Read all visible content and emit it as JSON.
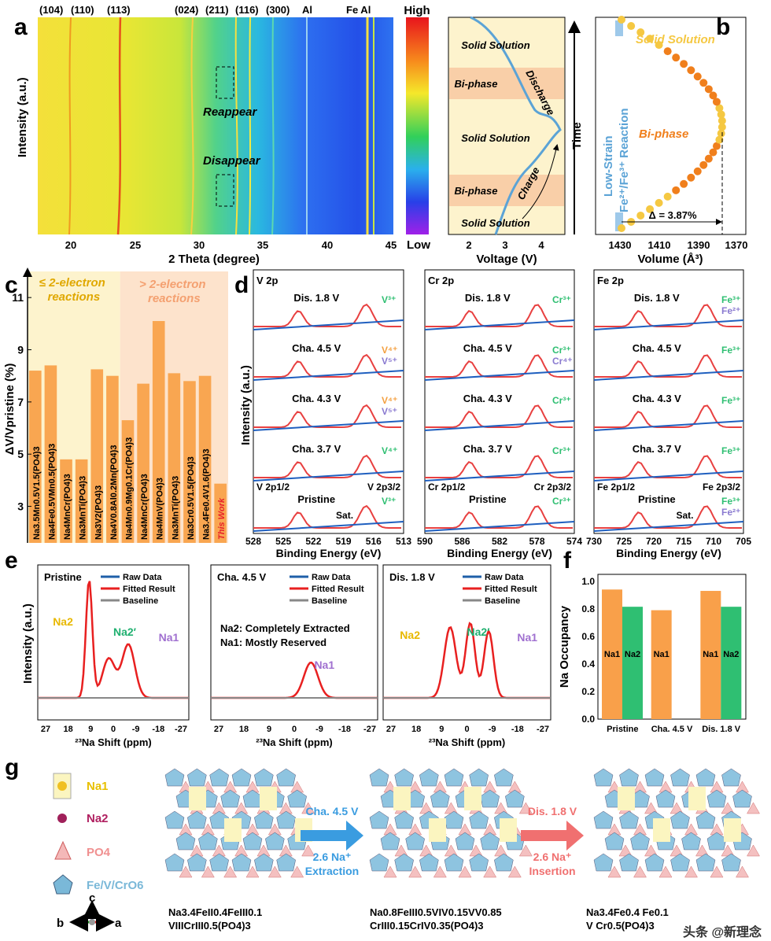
{
  "panels": {
    "a": "a",
    "b": "b",
    "c": "c",
    "d": "d",
    "e": "e",
    "f": "f",
    "g": "g"
  },
  "panel_a": {
    "ylabel": "Intensity (a.u.)",
    "xlabel": "2 Theta (degree)",
    "peaks": [
      "(104)",
      "(110)",
      "(113)",
      "(024)",
      "(211)",
      "(116)",
      "(300)",
      "Al",
      "Fe Al"
    ],
    "xticks": [
      "20",
      "25",
      "30",
      "35",
      "40",
      "45"
    ],
    "annotations": [
      "Reappear",
      "Disappear"
    ],
    "colorbar": {
      "high": "High",
      "low": "Low"
    },
    "voltage": {
      "xlabel": "Voltage (V)",
      "xticks": [
        "2",
        "3",
        "4"
      ],
      "regions": [
        "Solid Solution",
        "Bi-phase",
        "Solid Solution",
        "Bi-phase",
        "Solid Solution"
      ],
      "arrows": [
        "Discharge",
        "Charge",
        "Charge"
      ],
      "time_label": "Time"
    }
  },
  "panel_b": {
    "xlabel": "Volume (Å³)",
    "xticks": [
      "1430",
      "1410",
      "1390",
      "1370"
    ],
    "labels": [
      "Solid Solution",
      "Bi-phase",
      "Low-Strain",
      "Fe²⁺/Fe³⁺ Reaction",
      "Δ = 3.87%"
    ],
    "colors": {
      "solid": "#f5c842",
      "biphase": "#f07f1c",
      "side": "#5ba3d6"
    }
  },
  "chart_data": [
    {
      "panel": "c",
      "type": "bar",
      "ylabel": "ΔV/Vpristine (%)",
      "ylim": [
        1.6,
        12
      ],
      "yticks": [
        3,
        5,
        7,
        9,
        11
      ],
      "groups": [
        "≤ 2-electron reactions",
        "> 2-electron reactions"
      ],
      "categories": [
        "Na3.5Mn0.5V1.5(PO4)3",
        "Na4Fe0.5VMn0.5(PO4)3",
        "Na4MnCr(PO4)3",
        "Na3MnTi(PO4)3",
        "Na3V2(PO4)3",
        "Na4V0.8Al0.2Mn(PO4)3",
        "Na4Mn0.9Mg0.1Cr(PO4)3",
        "Na4MnCr(PO4)3",
        "Na4MnV(PO4)3",
        "Na3MnTi(PO4)3",
        "Na3Cr0.5V1.5(PO4)3",
        "Na3.4Fe0.4V1.6(PO4)3",
        "This Work"
      ],
      "values": [
        8.2,
        8.4,
        4.8,
        4.8,
        8.25,
        8.0,
        6.3,
        7.7,
        10.1,
        8.1,
        7.8,
        8.0,
        3.87
      ],
      "colors": {
        "bar": "#f9a651",
        "group1_bg": "#fdf3cd",
        "group2_bg": "#fde3cc",
        "highlight": "#e8222a"
      }
    },
    {
      "panel": "f",
      "type": "bar",
      "ylabel": "Na Occupancy",
      "ylim": [
        0,
        1.05
      ],
      "yticks": [
        "0.0",
        "0.2",
        "0.4",
        "0.6",
        "0.8",
        "1.0"
      ],
      "categories": [
        "Pristine",
        "Cha. 4.5 V",
        "Dis. 1.8 V"
      ],
      "series": [
        {
          "name": "Na1",
          "values": [
            0.94,
            0.79,
            0.93
          ],
          "color": "#f9a04a"
        },
        {
          "name": "Na2",
          "values": [
            0.815,
            null,
            0.815
          ],
          "color": "#2fbf72"
        }
      ]
    }
  ],
  "panel_d": {
    "ylabel": "Intensity (a.u.)",
    "xlabel": "Binding Energy (eV)",
    "cols": [
      {
        "title": "V 2p",
        "xticks": [
          "528",
          "525",
          "522",
          "519",
          "516",
          "513"
        ],
        "rows": [
          "Dis. 1.8 V",
          "Cha. 4.5 V",
          "Cha. 4.3 V",
          "Cha. 3.7 V",
          "Pristine"
        ],
        "states": [
          [
            "V³⁺"
          ],
          [
            "V⁴⁺",
            "V⁵⁺"
          ],
          [
            "V⁴⁺",
            "V⁵⁺"
          ],
          [
            "V⁴⁺"
          ],
          [
            "V³⁺"
          ]
        ],
        "extra": [
          "V 2p1/2",
          "V 2p3/2",
          "Sat."
        ]
      },
      {
        "title": "Cr 2p",
        "xticks": [
          "590",
          "586",
          "582",
          "578",
          "574"
        ],
        "rows": [
          "Dis. 1.8 V",
          "Cha. 4.5 V",
          "Cha. 4.3 V",
          "Cha. 3.7 V",
          "Pristine"
        ],
        "states": [
          [
            "Cr³⁺"
          ],
          [
            "Cr³⁺",
            "Cr⁴⁺"
          ],
          [
            "Cr³⁺"
          ],
          [
            "Cr³⁺"
          ],
          [
            "Cr³⁺"
          ]
        ],
        "extra": [
          "Cr 2p1/2",
          "Cr 2p3/2",
          ""
        ]
      },
      {
        "title": "Fe 2p",
        "xticks": [
          "730",
          "725",
          "720",
          "715",
          "710",
          "705"
        ],
        "rows": [
          "Dis. 1.8 V",
          "Cha. 4.5 V",
          "Cha. 4.3 V",
          "Cha. 3.7 V",
          "Pristine"
        ],
        "states": [
          [
            "Fe³⁺",
            "Fe²⁺"
          ],
          [
            "Fe³⁺"
          ],
          [
            "Fe³⁺"
          ],
          [
            "Fe³⁺"
          ],
          [
            "Fe³⁺",
            "Fe²⁺"
          ]
        ],
        "extra": [
          "Fe 2p1/2",
          "Fe 2p3/2",
          "Sat."
        ]
      }
    ]
  },
  "panel_e": {
    "ylabel": "Intensity (a.u.)",
    "xlabel": "²³Na Shift (ppm)",
    "xticks": [
      "27",
      "18",
      "9",
      "0",
      "-9",
      "-18",
      "-27"
    ],
    "legend": [
      "Raw Data",
      "Fitted Result",
      "Baseline"
    ],
    "plots": [
      {
        "title": "Pristine",
        "labels": [
          "Na2",
          "Na2′",
          "Na1"
        ]
      },
      {
        "title": "Cha. 4.5 V",
        "labels": [
          "Na1"
        ],
        "notes": [
          "Na2: Completely Extracted",
          "Na1: Mostly Reserved"
        ]
      },
      {
        "title": "Dis. 1.8 V",
        "labels": [
          "Na2",
          "Na2′",
          "Na1"
        ]
      }
    ]
  },
  "panel_g": {
    "legend": [
      "Na1",
      "Na2",
      "PO4",
      "Fe/V/CrO6"
    ],
    "arrow1": [
      "Cha. 4.5 V",
      "2.6 Na⁺",
      "Extraction"
    ],
    "arrow2": [
      "Dis. 1.8 V",
      "2.6 Na⁺",
      "Insertion"
    ],
    "axes": [
      "c",
      "b",
      "a"
    ],
    "formulas": [
      "Na3.4FeII0.4FeIII0.1VIIICrIII0.5(PO4)3",
      "Na0.8FeIII0.5VIV0.15VV0.85CrIII0.15CrIV0.35(PO4)3",
      "Na3.4Fe0.4 Fe0.1 V Cr0.5(PO4)3"
    ]
  },
  "watermark": "头条 @新理念"
}
